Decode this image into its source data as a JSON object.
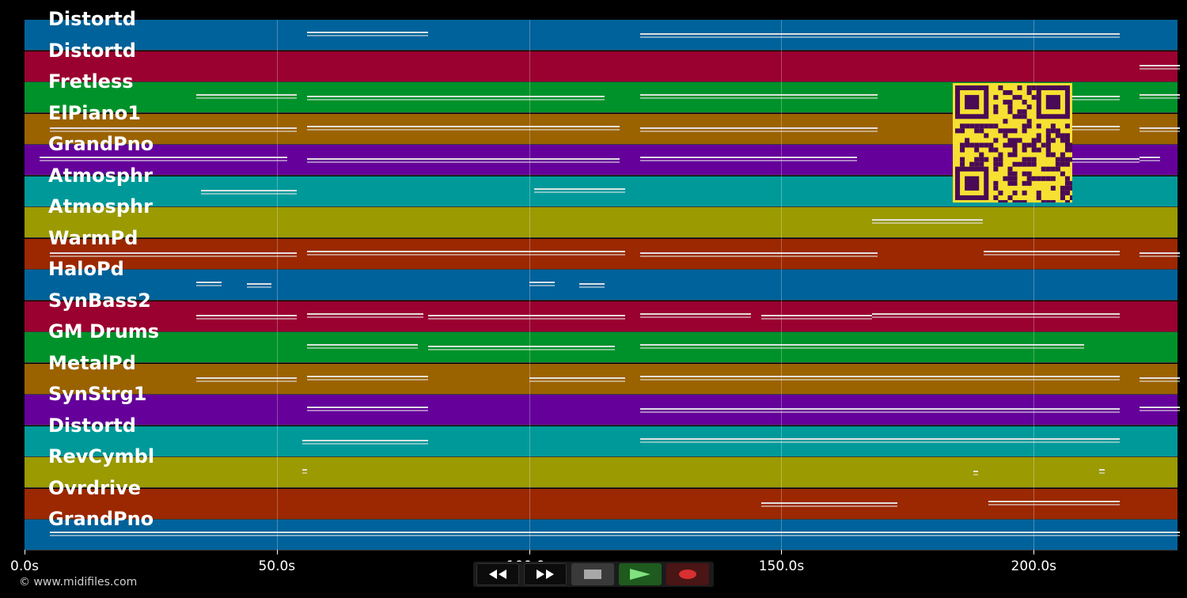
{
  "tracks": [
    {
      "label": "Distortd",
      "color": "#00629b",
      "notes": [
        [
          56,
          80
        ],
        [
          122,
          217
        ]
      ]
    },
    {
      "label": "Distortd",
      "color": "#9a0030",
      "notes": [
        [
          221,
          229
        ]
      ]
    },
    {
      "label": "Fretless",
      "color": "#00922a",
      "notes": [
        [
          34,
          54
        ],
        [
          56,
          115
        ],
        [
          122,
          169
        ],
        [
          186,
          217
        ],
        [
          221,
          229
        ]
      ]
    },
    {
      "label": "ElPiano1",
      "color": "#9b6200",
      "notes": [
        [
          5,
          54
        ],
        [
          56,
          118
        ],
        [
          122,
          169
        ],
        [
          186,
          217
        ],
        [
          221,
          229
        ]
      ]
    },
    {
      "label": "GrandPno",
      "color": "#65009a",
      "notes": [
        [
          3,
          52
        ],
        [
          56,
          118
        ],
        [
          122,
          165
        ],
        [
          186,
          221
        ],
        [
          221,
          225
        ]
      ]
    },
    {
      "label": "Atmosphr",
      "color": "#00999a",
      "notes": [
        [
          35,
          54
        ],
        [
          101,
          119
        ]
      ]
    },
    {
      "label": "Atmosphr",
      "color": "#9b9a00",
      "notes": [
        [
          168,
          190
        ]
      ]
    },
    {
      "label": "WarmPd",
      "color": "#9b2800",
      "notes": [
        [
          5,
          54
        ],
        [
          56,
          119
        ],
        [
          122,
          169
        ],
        [
          190,
          217
        ],
        [
          221,
          229
        ]
      ]
    },
    {
      "label": "HaloPd",
      "color": "#00629b",
      "notes": [
        [
          34,
          39
        ],
        [
          44,
          49
        ],
        [
          100,
          105
        ],
        [
          110,
          115
        ]
      ]
    },
    {
      "label": "SynBass2",
      "color": "#9a0030",
      "notes": [
        [
          34,
          54
        ],
        [
          56,
          79
        ],
        [
          80,
          119
        ],
        [
          122,
          144
        ],
        [
          146,
          168
        ],
        [
          168,
          217
        ]
      ]
    },
    {
      "label": "GM Drums",
      "color": "#00922a",
      "notes": [
        [
          56,
          78
        ],
        [
          80,
          117
        ],
        [
          122,
          210
        ]
      ]
    },
    {
      "label": "MetalPd",
      "color": "#9b6200",
      "notes": [
        [
          34,
          54
        ],
        [
          56,
          80
        ],
        [
          100,
          119
        ],
        [
          122,
          217
        ],
        [
          221,
          229
        ]
      ]
    },
    {
      "label": "SynStrg1",
      "color": "#65009a",
      "notes": [
        [
          56,
          80
        ],
        [
          122,
          217
        ],
        [
          221,
          229
        ]
      ]
    },
    {
      "label": "Distortd",
      "color": "#00999a",
      "notes": [
        [
          55,
          80
        ],
        [
          122,
          217
        ]
      ]
    },
    {
      "label": "RevCymbl",
      "color": "#9b9a00",
      "notes": [
        [
          55,
          56
        ],
        [
          188,
          189
        ],
        [
          213,
          214
        ]
      ]
    },
    {
      "label": "Ovrdrive",
      "color": "#9b2800",
      "notes": [
        [
          146,
          173
        ],
        [
          191,
          217
        ]
      ]
    },
    {
      "label": "GrandPno",
      "color": "#00629b",
      "notes": [
        [
          5,
          229
        ]
      ]
    }
  ],
  "axis": {
    "ticks": [
      {
        "label": "0.0s",
        "value": 0
      },
      {
        "label": "50.0s",
        "value": 50
      },
      {
        "label": "100.0s",
        "value": 100
      },
      {
        "label": "150.0s",
        "value": 150
      },
      {
        "label": "200.0s",
        "value": 200
      }
    ],
    "max_seconds": 228.5
  },
  "copyright": "© www.midifiles.com",
  "transport": {
    "rewind_icon": "rewind-icon",
    "fastforward_icon": "fast-forward-icon",
    "stop_icon": "stop-icon",
    "play_icon": "play-icon",
    "record_icon": "record-icon",
    "play_color": "#7ee27e",
    "record_color": "#d83030"
  },
  "qr_colors": {
    "background": "#f7e032",
    "foreground": "#4a0a55"
  }
}
